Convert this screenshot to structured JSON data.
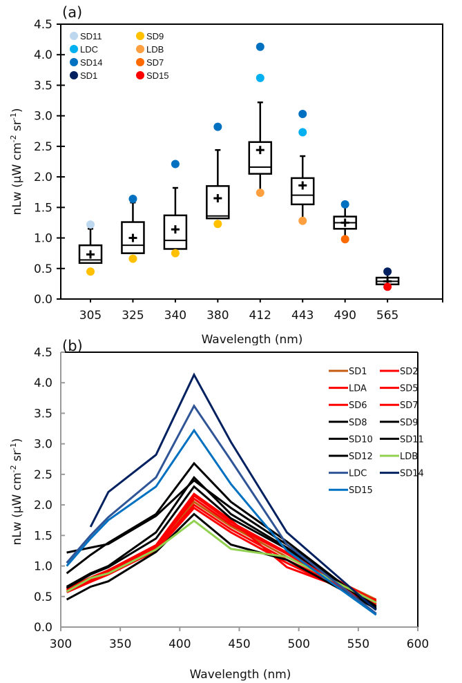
{
  "chart_data": [
    {
      "panel_label": "(a)",
      "type": "box",
      "title": "",
      "xlabel": "Wavelength (nm)",
      "ylabel": "nLw (µW cm-2 sr-1)",
      "ylabel_parts": {
        "main": "nLw (µW cm",
        "sup1": "-2",
        "mid": " sr",
        "sup2": "-1",
        "end": ")"
      },
      "ylim": [
        0,
        4.5
      ],
      "yticks": [
        "0.0",
        "0.5",
        "1.0",
        "1.5",
        "2.0",
        "2.5",
        "3.0",
        "3.5",
        "4.0",
        "4.5"
      ],
      "categories": [
        "305",
        "325",
        "340",
        "380",
        "412",
        "443",
        "490",
        "565"
      ],
      "boxes": [
        {
          "category": "305",
          "whisker_low": 0.58,
          "q1": 0.59,
          "median": 0.64,
          "q3": 0.88,
          "whisker_high": 1.15,
          "mean": 0.73
        },
        {
          "category": "325",
          "whisker_low": 0.74,
          "q1": 0.75,
          "median": 0.88,
          "q3": 1.26,
          "whisker_high": 1.58,
          "mean": 1.0
        },
        {
          "category": "340",
          "whisker_low": 0.81,
          "q1": 0.82,
          "median": 0.96,
          "q3": 1.37,
          "whisker_high": 1.82,
          "mean": 1.14
        },
        {
          "category": "380",
          "whisker_low": 1.31,
          "q1": 1.32,
          "median": 1.36,
          "q3": 1.85,
          "whisker_high": 2.44,
          "mean": 1.65
        },
        {
          "category": "412",
          "whisker_low": 1.75,
          "q1": 2.05,
          "median": 2.16,
          "q3": 2.57,
          "whisker_high": 3.22,
          "mean": 2.44
        },
        {
          "category": "443",
          "whisker_low": 1.3,
          "q1": 1.55,
          "median": 1.7,
          "q3": 1.98,
          "whisker_high": 2.34,
          "mean": 1.86
        },
        {
          "category": "490",
          "whisker_low": 1.0,
          "q1": 1.15,
          "median": 1.25,
          "q3": 1.35,
          "whisker_high": 1.53,
          "mean": 1.25
        },
        {
          "category": "565",
          "whisker_low": 0.2,
          "q1": 0.24,
          "median": 0.29,
          "q3": 0.35,
          "whisker_high": 0.45,
          "mean": 0.29
        }
      ],
      "outliers": [
        {
          "category": "305",
          "value": 1.22,
          "station": "SD11"
        },
        {
          "category": "305",
          "value": 0.45,
          "station": "SD9"
        },
        {
          "category": "325",
          "value": 1.64,
          "station": "SD14"
        },
        {
          "category": "325",
          "value": 0.66,
          "station": "SD9"
        },
        {
          "category": "340",
          "value": 2.21,
          "station": "SD14"
        },
        {
          "category": "340",
          "value": 0.75,
          "station": "SD9"
        },
        {
          "category": "380",
          "value": 2.82,
          "station": "SD14"
        },
        {
          "category": "380",
          "value": 1.23,
          "station": "SD9"
        },
        {
          "category": "412",
          "value": 4.13,
          "station": "SD14"
        },
        {
          "category": "412",
          "value": 3.62,
          "station": "LDC"
        },
        {
          "category": "412",
          "value": 1.74,
          "station": "LDB"
        },
        {
          "category": "443",
          "value": 3.03,
          "station": "SD14"
        },
        {
          "category": "443",
          "value": 2.73,
          "station": "LDC"
        },
        {
          "category": "443",
          "value": 1.28,
          "station": "LDB"
        },
        {
          "category": "490",
          "value": 1.55,
          "station": "SD14"
        },
        {
          "category": "490",
          "value": 0.98,
          "station": "SD7"
        },
        {
          "category": "565",
          "value": 0.45,
          "station": "SD1"
        },
        {
          "category": "565",
          "value": 0.2,
          "station": "SD15"
        }
      ],
      "legend": {
        "placement": "top-left",
        "entries": [
          {
            "label": "SD11",
            "color": "#bdd7ee"
          },
          {
            "label": "LDC",
            "color": "#00b0f0"
          },
          {
            "label": "SD14",
            "color": "#0070c0"
          },
          {
            "label": "SD1",
            "color": "#002060"
          },
          {
            "label": "SD9",
            "color": "#ffc000"
          },
          {
            "label": "LDB",
            "color": "#ffa040"
          },
          {
            "label": "SD7",
            "color": "#ff6a00"
          },
          {
            "label": "SD15",
            "color": "#ff0000"
          }
        ]
      }
    },
    {
      "panel_label": "(b)",
      "type": "line",
      "title": "",
      "xlabel": "Wavelength (nm)",
      "ylabel": "nLw (µW cm-2 sr-1)",
      "ylabel_parts": {
        "main": "nLw (µW cm",
        "sup1": "-2",
        "mid": " sr",
        "sup2": "-1",
        "end": ")"
      },
      "xlim": [
        300,
        600
      ],
      "ylim": [
        0,
        4.5
      ],
      "xticks": [
        "300",
        "350",
        "400",
        "450",
        "500",
        "550",
        "600"
      ],
      "yticks": [
        "0.0",
        "0.5",
        "1.0",
        "1.5",
        "2.0",
        "2.5",
        "3.0",
        "3.5",
        "4.0",
        "4.5"
      ],
      "x": [
        305,
        325,
        340,
        380,
        412,
        443,
        490,
        565
      ],
      "legend": {
        "placement": "top-right"
      },
      "series": [
        {
          "name": "SD1",
          "color": "#c55a11",
          "values": [
            0.6,
            0.78,
            0.9,
            1.3,
            2.05,
            1.65,
            1.15,
            0.45
          ]
        },
        {
          "name": "SD2",
          "color": "#ff0000",
          "values": [
            0.62,
            0.8,
            0.92,
            1.33,
            2.15,
            1.72,
            1.22,
            0.42
          ]
        },
        {
          "name": "LDA",
          "color": "#ff0000",
          "values": [
            0.58,
            0.76,
            0.88,
            1.28,
            2.0,
            1.6,
            1.1,
            0.4
          ]
        },
        {
          "name": "SD5",
          "color": "#ff0000",
          "values": [
            0.6,
            0.79,
            0.91,
            1.31,
            2.1,
            1.68,
            1.2,
            0.38
          ]
        },
        {
          "name": "SD6",
          "color": "#ff0000",
          "values": [
            0.57,
            0.74,
            0.86,
            1.25,
            1.95,
            1.55,
            1.05,
            0.36
          ]
        },
        {
          "name": "SD7",
          "color": "#ff0000",
          "values": [
            0.63,
            0.81,
            0.93,
            1.34,
            2.18,
            1.75,
            0.98,
            0.44
          ]
        },
        {
          "name": "SD8",
          "color": "#000000",
          "values": [
            0.66,
            0.88,
            1.0,
            1.55,
            2.45,
            1.85,
            1.3,
            0.32
          ]
        },
        {
          "name": "SD9",
          "color": "#000000",
          "values": [
            0.45,
            0.66,
            0.75,
            1.23,
            1.85,
            1.35,
            1.1,
            0.3
          ]
        },
        {
          "name": "SD10",
          "color": "#000000",
          "values": [
            0.88,
            1.18,
            1.38,
            1.85,
            2.68,
            2.05,
            1.4,
            0.28
          ]
        },
        {
          "name": "SD11",
          "color": "#000000",
          "values": [
            1.22,
            1.3,
            1.36,
            1.82,
            2.4,
            1.95,
            1.35,
            0.3
          ]
        },
        {
          "name": "SD12",
          "color": "#000000",
          "values": [
            0.64,
            0.86,
            0.98,
            1.45,
            2.3,
            1.78,
            1.28,
            0.34
          ]
        },
        {
          "name": "LDB",
          "color": "#92d050",
          "values": [
            0.58,
            0.8,
            0.88,
            1.27,
            1.74,
            1.28,
            1.15,
            0.4
          ]
        },
        {
          "name": "LDC",
          "color": "#2f5597",
          "values": [
            1.05,
            1.5,
            1.8,
            2.45,
            3.62,
            2.73,
            1.35,
            0.22
          ]
        },
        {
          "name": "SD14",
          "color": "#002060",
          "values": [
            null,
            1.64,
            2.21,
            2.82,
            4.13,
            3.03,
            1.55,
            0.28
          ]
        },
        {
          "name": "SD15",
          "color": "#0070c0",
          "values": [
            1.0,
            1.45,
            1.75,
            2.3,
            3.22,
            2.34,
            1.25,
            0.2
          ]
        }
      ]
    }
  ]
}
